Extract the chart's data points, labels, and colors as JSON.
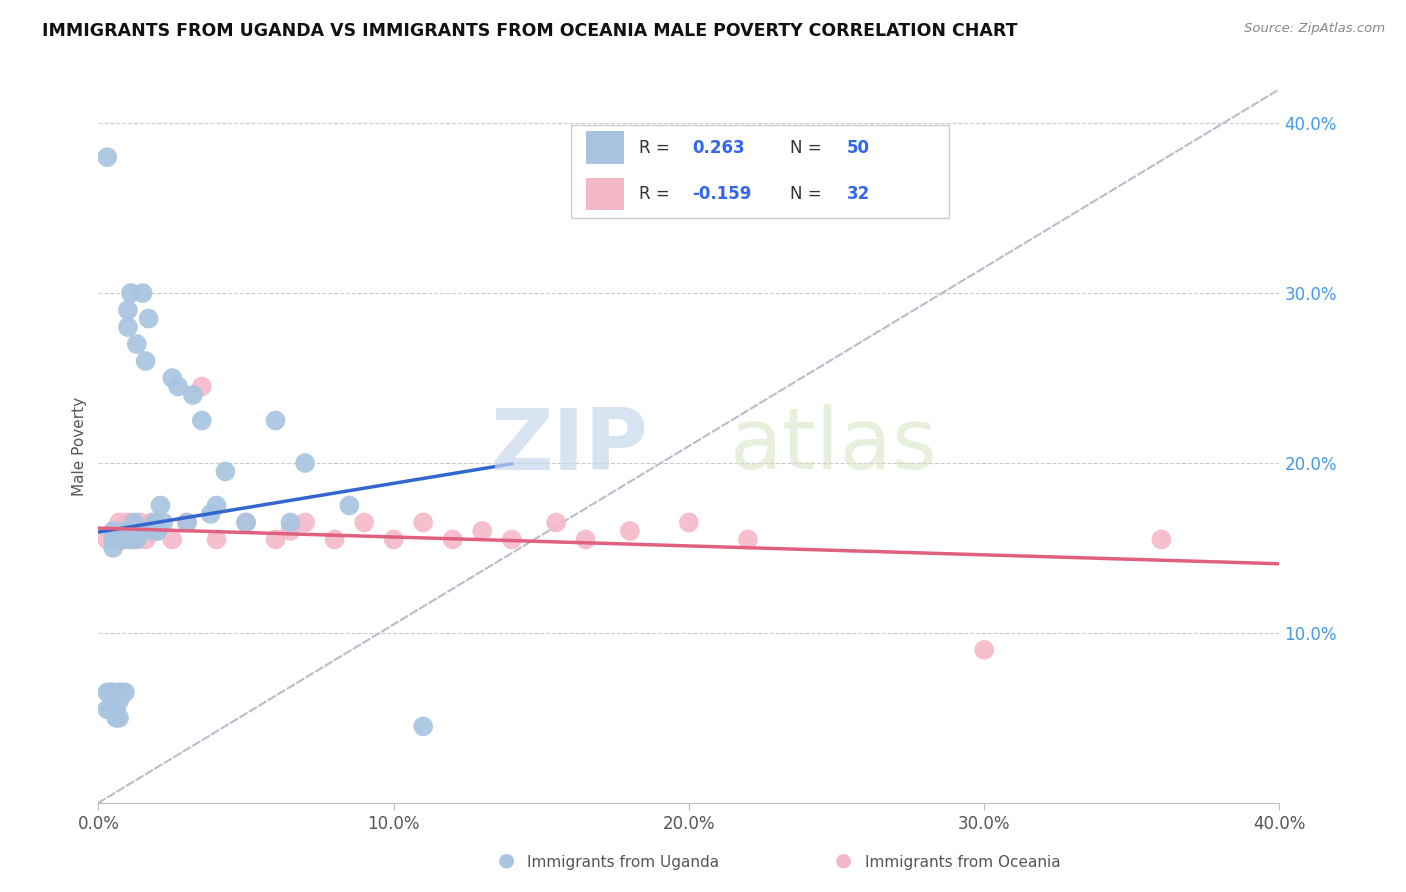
{
  "title": "IMMIGRANTS FROM UGANDA VS IMMIGRANTS FROM OCEANIA MALE POVERTY CORRELATION CHART",
  "source": "Source: ZipAtlas.com",
  "ylabel": "Male Poverty",
  "xlim": [
    0.0,
    0.4
  ],
  "ylim": [
    0.0,
    0.42
  ],
  "x_ticks": [
    0.0,
    0.1,
    0.2,
    0.3,
    0.4
  ],
  "x_tick_labels": [
    "0.0%",
    "10.0%",
    "20.0%",
    "30.0%",
    "40.0%"
  ],
  "y_ticks_right": [
    0.1,
    0.2,
    0.3,
    0.4
  ],
  "y_tick_labels_right": [
    "10.0%",
    "20.0%",
    "30.0%",
    "40.0%"
  ],
  "R_uganda": 0.263,
  "N_uganda": 50,
  "R_oceania": -0.159,
  "N_oceania": 32,
  "uganda_color": "#a8c4e0",
  "oceania_color": "#f4b8c8",
  "uganda_line_color": "#3366cc",
  "oceania_line_color": "#e06080",
  "trendline_dashed_color": "#bbbbcc",
  "watermark_zip": "ZIP",
  "watermark_atlas": "atlas",
  "uganda_x": [
    0.003,
    0.003,
    0.003,
    0.004,
    0.004,
    0.005,
    0.005,
    0.005,
    0.005,
    0.006,
    0.006,
    0.007,
    0.007,
    0.007,
    0.008,
    0.008,
    0.009,
    0.009,
    0.009,
    0.01,
    0.01,
    0.01,
    0.011,
    0.011,
    0.012,
    0.013,
    0.013,
    0.014,
    0.015,
    0.016,
    0.017,
    0.018,
    0.019,
    0.02,
    0.021,
    0.022,
    0.025,
    0.027,
    0.03,
    0.032,
    0.035,
    0.038,
    0.04,
    0.043,
    0.05,
    0.06,
    0.065,
    0.07,
    0.085,
    0.11
  ],
  "uganda_y": [
    0.38,
    0.065,
    0.055,
    0.065,
    0.055,
    0.16,
    0.155,
    0.15,
    0.065,
    0.055,
    0.05,
    0.065,
    0.06,
    0.05,
    0.155,
    0.065,
    0.16,
    0.155,
    0.065,
    0.29,
    0.28,
    0.16,
    0.3,
    0.155,
    0.165,
    0.27,
    0.155,
    0.16,
    0.3,
    0.26,
    0.285,
    0.16,
    0.165,
    0.16,
    0.175,
    0.165,
    0.25,
    0.245,
    0.165,
    0.24,
    0.225,
    0.17,
    0.175,
    0.195,
    0.165,
    0.225,
    0.165,
    0.2,
    0.175,
    0.045
  ],
  "oceania_x": [
    0.003,
    0.005,
    0.007,
    0.008,
    0.01,
    0.012,
    0.014,
    0.016,
    0.018,
    0.02,
    0.025,
    0.03,
    0.035,
    0.04,
    0.05,
    0.06,
    0.065,
    0.07,
    0.08,
    0.09,
    0.1,
    0.11,
    0.12,
    0.13,
    0.14,
    0.155,
    0.165,
    0.18,
    0.2,
    0.22,
    0.3,
    0.36
  ],
  "oceania_y": [
    0.155,
    0.065,
    0.165,
    0.155,
    0.165,
    0.155,
    0.165,
    0.155,
    0.165,
    0.16,
    0.155,
    0.165,
    0.245,
    0.155,
    0.165,
    0.155,
    0.16,
    0.165,
    0.155,
    0.165,
    0.155,
    0.165,
    0.155,
    0.16,
    0.155,
    0.165,
    0.155,
    0.16,
    0.165,
    0.155,
    0.09,
    0.155
  ]
}
